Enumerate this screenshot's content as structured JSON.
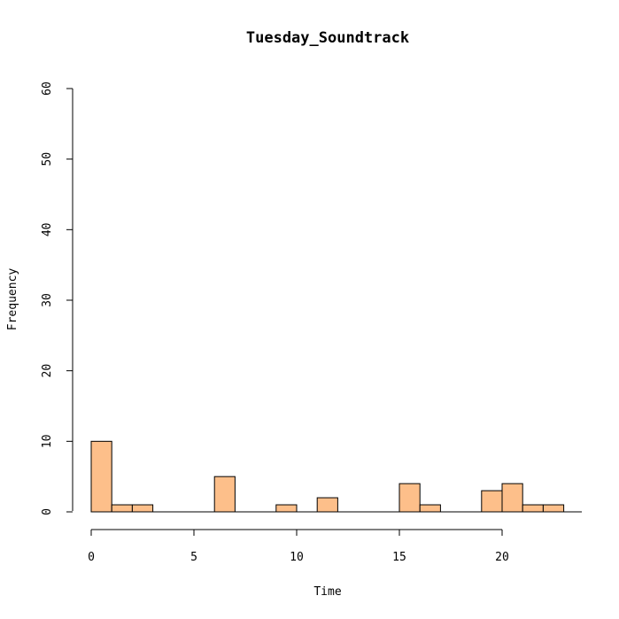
{
  "chart_data": {
    "type": "bar",
    "title": "Tuesday_Soundtrack",
    "xlabel": "Time",
    "ylabel": "Frequency",
    "xlim": [
      0,
      24
    ],
    "ylim": [
      0,
      60
    ],
    "xticks": [
      0,
      5,
      10,
      15,
      20
    ],
    "xtick_labels": [
      "0",
      "5",
      "10",
      "15",
      "20"
    ],
    "yticks": [
      0,
      10,
      20,
      30,
      40,
      50,
      60
    ],
    "ytick_labels": [
      "0",
      "10",
      "20",
      "30",
      "40",
      "50",
      "60"
    ],
    "bin_width": 1,
    "bins": [
      {
        "start": 0,
        "count": 10
      },
      {
        "start": 1,
        "count": 1
      },
      {
        "start": 2,
        "count": 1
      },
      {
        "start": 6,
        "count": 5
      },
      {
        "start": 9,
        "count": 1
      },
      {
        "start": 11,
        "count": 2
      },
      {
        "start": 15,
        "count": 4
      },
      {
        "start": 16,
        "count": 1
      },
      {
        "start": 19,
        "count": 3
      },
      {
        "start": 20,
        "count": 4
      },
      {
        "start": 21,
        "count": 1
      },
      {
        "start": 22,
        "count": 1
      }
    ],
    "bar_color": "#FDBF8A",
    "grid": false
  }
}
